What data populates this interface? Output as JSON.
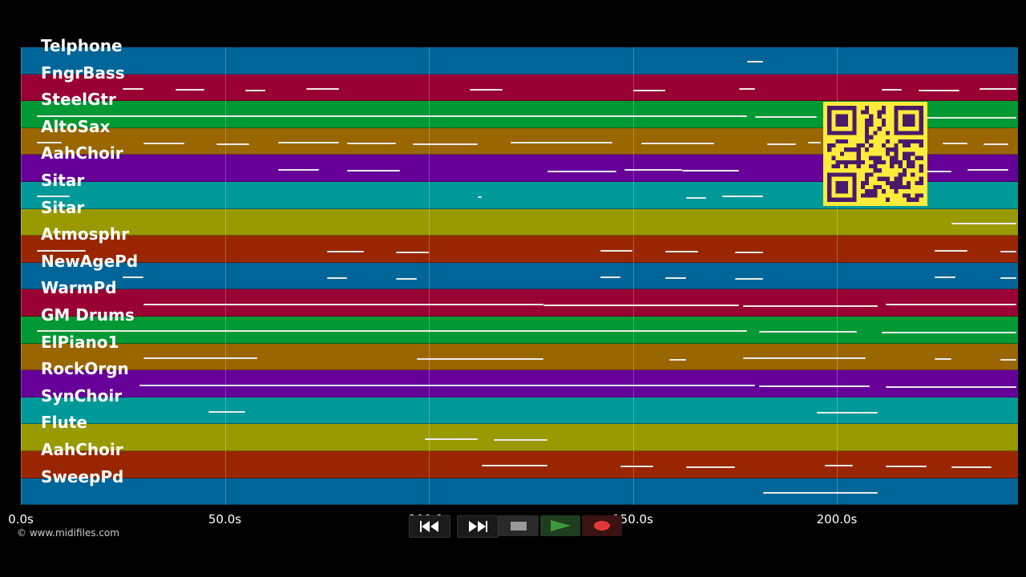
{
  "lanes": [
    {
      "label": "Telphone",
      "color": "#006699"
    },
    {
      "label": "FngrBass",
      "color": "#990033"
    },
    {
      "label": "SteelGtr",
      "color": "#009933"
    },
    {
      "label": "AltoSax",
      "color": "#996600"
    },
    {
      "label": "AahChoir",
      "color": "#660099"
    },
    {
      "label": "Sitar",
      "color": "#009999"
    },
    {
      "label": "Sitar",
      "color": "#999900"
    },
    {
      "label": "Atmosphr",
      "color": "#992600"
    },
    {
      "label": "NewAgePd",
      "color": "#006699"
    },
    {
      "label": "WarmPd",
      "color": "#990033"
    },
    {
      "label": "GM Drums",
      "color": "#009933"
    },
    {
      "label": "ElPiano1",
      "color": "#996600"
    },
    {
      "label": "RockOrgn",
      "color": "#660099"
    },
    {
      "label": "SynChoir",
      "color": "#009999"
    },
    {
      "label": "Flute",
      "color": "#999900"
    },
    {
      "label": "AahChoir",
      "color": "#992600"
    },
    {
      "label": "SweepPd",
      "color": "#006699"
    }
  ],
  "timeline": {
    "ticks": [
      "0.0s",
      "50.0s",
      "100.0s",
      "150.0s",
      "200.0s"
    ],
    "tick_seconds": [
      0,
      50,
      100,
      150,
      200
    ],
    "visible_range_seconds": [
      0,
      244
    ]
  },
  "notes": [
    {
      "lane": 0,
      "segments": [
        [
          178,
          182
        ]
      ]
    },
    {
      "lane": 1,
      "segments": [
        [
          25,
          30
        ],
        [
          38,
          45
        ],
        [
          55,
          60
        ],
        [
          70,
          78
        ],
        [
          110,
          118
        ],
        [
          150,
          158
        ],
        [
          176,
          180
        ],
        [
          211,
          216
        ],
        [
          220,
          230
        ],
        [
          235,
          244
        ]
      ]
    },
    {
      "lane": 2,
      "segments": [
        [
          4,
          178
        ],
        [
          180,
          195
        ],
        [
          221,
          244
        ]
      ]
    },
    {
      "lane": 3,
      "segments": [
        [
          4,
          10
        ],
        [
          30,
          40
        ],
        [
          48,
          56
        ],
        [
          63,
          78
        ],
        [
          80,
          92
        ],
        [
          96,
          112
        ],
        [
          120,
          145
        ],
        [
          152,
          170
        ],
        [
          183,
          190
        ],
        [
          193,
          196
        ],
        [
          226,
          232
        ],
        [
          236,
          242
        ]
      ]
    },
    {
      "lane": 4,
      "segments": [
        [
          63,
          73
        ],
        [
          80,
          93
        ],
        [
          129,
          146
        ],
        [
          148,
          162
        ],
        [
          162,
          176
        ],
        [
          222,
          228
        ],
        [
          232,
          242
        ]
      ]
    },
    {
      "lane": 5,
      "segments": [
        [
          4,
          12
        ],
        [
          112,
          113
        ],
        [
          163,
          168
        ],
        [
          172,
          182
        ]
      ]
    },
    {
      "lane": 6,
      "segments": [
        [
          228,
          244
        ]
      ]
    },
    {
      "lane": 7,
      "segments": [
        [
          4,
          16
        ],
        [
          75,
          84
        ],
        [
          92,
          100
        ],
        [
          142,
          150
        ],
        [
          158,
          166
        ],
        [
          175,
          182
        ],
        [
          224,
          232
        ],
        [
          240,
          244
        ]
      ]
    },
    {
      "lane": 8,
      "segments": [
        [
          25,
          30
        ],
        [
          75,
          80
        ],
        [
          92,
          97
        ],
        [
          142,
          147
        ],
        [
          158,
          163
        ],
        [
          175,
          182
        ],
        [
          224,
          229
        ],
        [
          240,
          244
        ]
      ]
    },
    {
      "lane": 9,
      "segments": [
        [
          30,
          128
        ],
        [
          128,
          176
        ],
        [
          177,
          210
        ],
        [
          212,
          244
        ]
      ]
    },
    {
      "lane": 10,
      "segments": [
        [
          4,
          178
        ],
        [
          181,
          205
        ],
        [
          211,
          244
        ]
      ]
    },
    {
      "lane": 11,
      "segments": [
        [
          30,
          58
        ],
        [
          97,
          128
        ],
        [
          159,
          163
        ],
        [
          177,
          207
        ],
        [
          224,
          228
        ],
        [
          240,
          244
        ]
      ]
    },
    {
      "lane": 12,
      "segments": [
        [
          29,
          180
        ],
        [
          181,
          208
        ],
        [
          212,
          244
        ]
      ]
    },
    {
      "lane": 13,
      "segments": [
        [
          46,
          55
        ],
        [
          195,
          210
        ]
      ]
    },
    {
      "lane": 14,
      "segments": [
        [
          99,
          112
        ],
        [
          116,
          129
        ]
      ]
    },
    {
      "lane": 15,
      "segments": [
        [
          113,
          129
        ],
        [
          147,
          155
        ],
        [
          163,
          175
        ],
        [
          197,
          204
        ],
        [
          212,
          222
        ],
        [
          228,
          238
        ]
      ]
    },
    {
      "lane": 16,
      "segments": [
        [
          182,
          210
        ]
      ]
    }
  ],
  "footer": {
    "copyright": "© www.midifiles.com"
  },
  "controls": {
    "rewind": "rewind-icon",
    "fastforward": "fast-forward-icon",
    "stop": "stop-icon",
    "play": "play-icon",
    "record": "record-icon",
    "play_color": "#3c9a3c",
    "record_color": "#e53935"
  },
  "qr_color": "#4a1a6a",
  "qr_bg": "#ffeb3b"
}
